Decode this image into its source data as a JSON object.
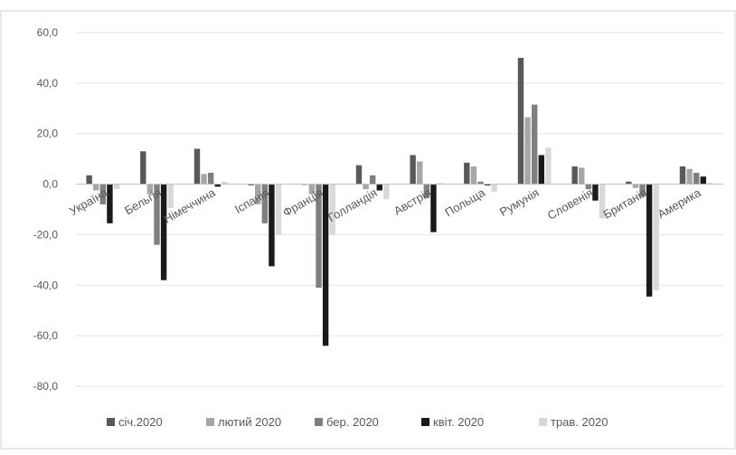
{
  "chart_data": {
    "type": "bar",
    "categories": [
      "Україна",
      "Бельгія",
      "Німеччина",
      "Іспанія",
      "Франція",
      "Голландія",
      "Австрія",
      "Польща",
      "Румунія",
      "Словенія",
      "Британія",
      "Америка"
    ],
    "series": [
      {
        "name": "січ.2020",
        "color": "#595959",
        "values": [
          3.5,
          13.0,
          14.0,
          -0.5,
          -0.3,
          7.5,
          11.5,
          8.5,
          50.0,
          7.0,
          1.0,
          7.0
        ]
      },
      {
        "name": "лютий 2020",
        "color": "#a6a6a6",
        "values": [
          -2.5,
          -4.0,
          4.0,
          -8.0,
          -4.0,
          -2.0,
          9.0,
          7.0,
          26.5,
          6.5,
          -1.5,
          6.0
        ]
      },
      {
        "name": "бер. 2020",
        "color": "#7f7f7f",
        "values": [
          -8.0,
          -24.0,
          4.5,
          -15.5,
          -41.0,
          3.5,
          -5.5,
          1.0,
          31.5,
          -2.0,
          -5.0,
          4.5
        ]
      },
      {
        "name": "квіт. 2020",
        "color": "#1a1a1a",
        "values": [
          -15.5,
          -38.0,
          -1.0,
          -32.5,
          -64.0,
          -2.5,
          -19.0,
          -0.5,
          11.5,
          -6.5,
          -44.5,
          3.0
        ]
      },
      {
        "name": "трав. 2020",
        "color": "#d9d9d9",
        "values": [
          -2.0,
          -9.5,
          1.0,
          -20.0,
          -20.0,
          -6.0,
          0.5,
          -3.0,
          14.5,
          -13.5,
          -42.0,
          0.5
        ]
      }
    ],
    "ylim": [
      -80,
      60
    ],
    "yticks": [
      60,
      40,
      20,
      0,
      -20,
      -40,
      -60,
      -80
    ],
    "ytick_labels": [
      "60,0",
      "40,0",
      "20,0",
      "0,0",
      "-20,0",
      "-40,0",
      "-60,0",
      "-80,0"
    ],
    "grid": true,
    "legend_position": "bottom"
  }
}
